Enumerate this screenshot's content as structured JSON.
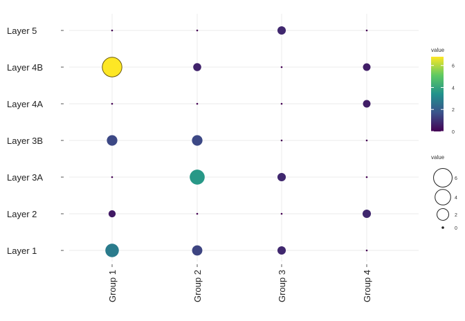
{
  "chart_data": {
    "type": "scatter",
    "subtype": "dot-plot",
    "x_categories": [
      "Group 1",
      "Group 2",
      "Group 3",
      "Group 4"
    ],
    "y_categories": [
      "Layer 1",
      "Layer 2",
      "Layer 3A",
      "Layer 3B",
      "Layer 4A",
      "Layer 4B",
      "Layer 5"
    ],
    "values": [
      [
        2.8,
        1.4,
        0.8,
        0.0
      ],
      [
        0.5,
        0.0,
        0.0,
        0.8
      ],
      [
        0.0,
        3.6,
        0.8,
        0.0
      ],
      [
        1.5,
        1.5,
        0.0,
        0.0
      ],
      [
        0.0,
        0.0,
        0.0,
        0.6
      ],
      [
        6.8,
        0.7,
        0.0,
        0.6
      ],
      [
        0.0,
        0.0,
        0.8,
        0.0
      ]
    ],
    "grid": true,
    "x_tick_rotation": -90,
    "color_legend": {
      "title": "value",
      "ticks": [
        0,
        2,
        4,
        6
      ],
      "range": [
        0,
        6.8
      ],
      "colors": [
        "#440154",
        "#3b528b",
        "#21918c",
        "#5ec962",
        "#fde725"
      ]
    },
    "size_legend": {
      "title": "value",
      "ticks": [
        6,
        4,
        2,
        0
      ]
    },
    "legend_placement": "right"
  }
}
